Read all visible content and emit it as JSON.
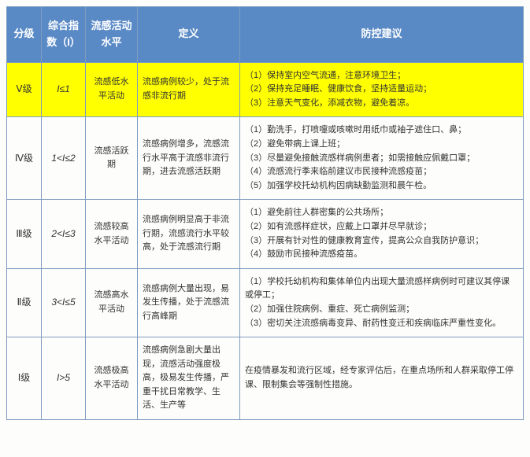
{
  "header": {
    "level": "分级",
    "index": "综合指数（I）",
    "activity": "流感活动水平",
    "definition": "定义",
    "suggestion": "防控建议"
  },
  "colors": {
    "header_bg": "#5a8ac6",
    "header_fg": "#ffffff",
    "border": "#7f9cbf",
    "highlight_bg": "#ffff00",
    "body_bg": "#fdfdfb",
    "text": "#333333"
  },
  "rows": [
    {
      "level": "Ⅴ级",
      "index": "I≤1",
      "activity": "流感低水平活动",
      "definition": "流感病例较少，处于流感非流行期",
      "highlight": true,
      "suggestions": [
        "（1）保持室内空气流通，注意环境卫生；",
        "（2）保持充足睡眠、健康饮食，坚持适量运动；",
        "（3）注意天气变化，添减衣物，避免着凉。"
      ]
    },
    {
      "level": "Ⅳ级",
      "index": "1<I≤2",
      "activity": "流感活跃期",
      "definition": "流感病例增多，流感流行水平高于流感非流行期，进去流感活跃期",
      "highlight": false,
      "suggestions": [
        "（1）勤洗手，打喷嚏或咳嗽时用纸巾或袖子遮住口、鼻；",
        "（2）避免带病上课上班；",
        "（3）尽量避免接触流感样病例患者；如需接触应佩戴口罩；",
        "（4）流感流行季来临前建议市民接种流感疫苗；",
        "（5）加强学校托幼机构因病缺勤监测和晨午检。"
      ]
    },
    {
      "level": "Ⅲ级",
      "index": "2<I≤3",
      "activity": "流感较高水平活动",
      "definition": "流感病例明显高于非流行期，流感流行水平较高，处于流感流行期",
      "highlight": false,
      "suggestions": [
        "（1）避免前往人群密集的公共场所；",
        "（2）如有流感样症状，应戴上口罩并尽早就诊；",
        "（3）开展有针对性的健康教育宣传，提高公众自我防护意识；",
        "（4）鼓励市民接种流感疫苗。"
      ]
    },
    {
      "level": "Ⅱ级",
      "index": "3<I≤5",
      "activity": "流感高水平活动",
      "definition": "流感病例大量出现，易发生传播，处于流感流行高峰期",
      "highlight": false,
      "suggestions": [
        "（1）学校托幼机构和集体单位内出现大量流感样病例时可建议其停课或停工；",
        "（2）加强住院病例、重症、死亡病例监测；",
        "（3）密切关注流感病毒变异、耐药性变迁和疾病临床严重性变化。"
      ]
    },
    {
      "level": "Ⅰ级",
      "index": "I>5",
      "activity": "流感极高水平活动",
      "definition": "流感病例急剧大量出现，流感活动强度极高，极易发生传播，严重干扰日常教学、生活、生产等",
      "highlight": false,
      "suggestions": [
        "在疫情暴发和流行区域，经专家评估后，在重点场所和人群采取停工停课、限制集会等强制性措施。"
      ]
    }
  ]
}
